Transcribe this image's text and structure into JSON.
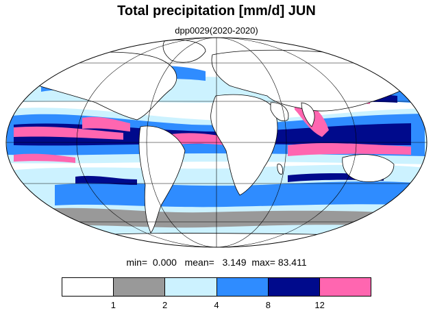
{
  "title": "Total precipitation [mm/d] JUN",
  "subtitle": "dpp0029(2020-2020)",
  "stats": {
    "min_label": "min=",
    "min_value": "0.000",
    "mean_label": "mean=",
    "mean_value": "3.149",
    "max_label": "max=",
    "max_value": "83.411"
  },
  "colorbar": {
    "colors": [
      "#ffffff",
      "#999999",
      "#ccf2ff",
      "#2f8cff",
      "#000a8c",
      "#ff66b0"
    ],
    "boundaries": [
      "1",
      "2",
      "4",
      "8",
      "12"
    ]
  },
  "map": {
    "projection": "Mollweide",
    "ocean_fill": "#ffffff",
    "coastline_color": "#000000",
    "gridline_color": "#000000"
  }
}
